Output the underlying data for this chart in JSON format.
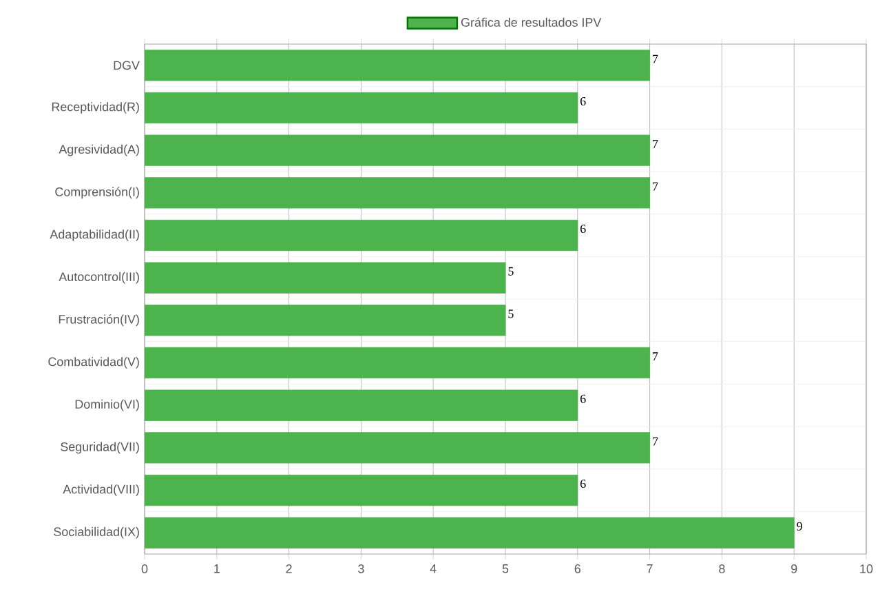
{
  "chart_data": {
    "type": "bar",
    "orientation": "horizontal",
    "categories": [
      "DGV",
      "Receptividad(R)",
      "Agresividad(A)",
      "Comprensión(I)",
      "Adaptabilidad(II)",
      "Autocontrol(III)",
      "Frustración(IV)",
      "Combatividad(V)",
      "Dominio(VI)",
      "Seguridad(VII)",
      "Actividad(VIII)",
      "Sociabilidad(IX)"
    ],
    "series": [
      {
        "name": "Gráfica de resultados IPV",
        "color": "#4db34d",
        "values": [
          7,
          6,
          7,
          7,
          6,
          5,
          5,
          7,
          6,
          7,
          6,
          9
        ]
      }
    ],
    "xlim": [
      0,
      10
    ],
    "xticks": [
      0,
      1,
      2,
      3,
      4,
      5,
      6,
      7,
      8,
      9,
      10
    ],
    "grid": true,
    "legend": "top",
    "data_labels": true
  }
}
